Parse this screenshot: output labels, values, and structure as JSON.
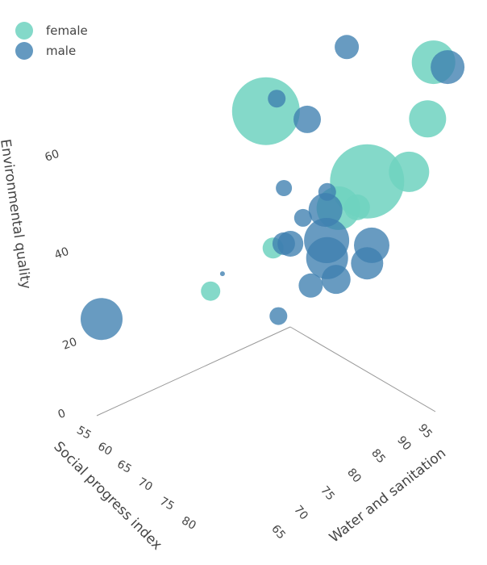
{
  "chart_data": {
    "type": "scatter3d",
    "title": "",
    "axes": {
      "x": {
        "label": "Social progress index",
        "ticks": [
          "55",
          "60",
          "65",
          "70",
          "75",
          "80"
        ],
        "range": [
          53,
          82
        ]
      },
      "y": {
        "label": "Water and sanitation",
        "ticks": [
          "65",
          "70",
          "75",
          "80",
          "85",
          "90",
          "95"
        ],
        "range": [
          63,
          97
        ]
      },
      "z": {
        "label": "Environmental quality",
        "ticks": [
          "0",
          "20",
          "40",
          "60"
        ],
        "range": [
          0,
          85
        ]
      }
    },
    "legend": {
      "placement": "top-left"
    },
    "series": [
      {
        "name": "female",
        "color": "#6fd2c0",
        "points": [
          {
            "x": 66,
            "y": 81.3,
            "z": 70.2,
            "size": 42
          },
          {
            "x": 82,
            "y": 96.7,
            "z": 83.4,
            "size": 27
          },
          {
            "x": 80,
            "y": 97.4,
            "z": 68.1,
            "size": 23
          },
          {
            "x": 78,
            "y": 95.9,
            "z": 55.0,
            "size": 25
          },
          {
            "x": 76,
            "y": 90.3,
            "z": 54.8,
            "size": 46
          },
          {
            "x": 74,
            "y": 87.0,
            "z": 49.1,
            "size": 27
          },
          {
            "x": 75,
            "y": 89.4,
            "z": 48.5,
            "size": 16
          },
          {
            "x": 68,
            "y": 80.8,
            "z": 39.3,
            "size": 13
          },
          {
            "x": 62,
            "y": 75.1,
            "z": 28.4,
            "size": 12
          }
        ]
      },
      {
        "name": "male",
        "color": "#3d7fb0",
        "points": [
          {
            "x": 70,
            "y": 92.0,
            "z": 81.6,
            "size": 15
          },
          {
            "x": 84,
            "y": 97.4,
            "z": 83.2,
            "size": 21
          },
          {
            "x": 66,
            "y": 83.2,
            "z": 72.0,
            "size": 11
          },
          {
            "x": 68,
            "y": 86.8,
            "z": 66.2,
            "size": 17
          },
          {
            "x": 68,
            "y": 82.7,
            "z": 52.4,
            "size": 10
          },
          {
            "x": 72,
            "y": 86.8,
            "z": 51.7,
            "size": 11
          },
          {
            "x": 72,
            "y": 86.5,
            "z": 47.6,
            "size": 21
          },
          {
            "x": 70,
            "y": 84.3,
            "z": 45.7,
            "size": 11
          },
          {
            "x": 72,
            "y": 86.7,
            "z": 40.2,
            "size": 28
          },
          {
            "x": 73,
            "y": 85.9,
            "z": 37.2,
            "size": 26
          },
          {
            "x": 70,
            "y": 82.1,
            "z": 40.9,
            "size": 16
          },
          {
            "x": 69,
            "y": 81.8,
            "z": 40.4,
            "size": 14
          },
          {
            "x": 76,
            "y": 91.1,
            "z": 39.1,
            "size": 22
          },
          {
            "x": 76,
            "y": 90.3,
            "z": 35.3,
            "size": 20
          },
          {
            "x": 74,
            "y": 86.6,
            "z": 32.4,
            "size": 18
          },
          {
            "x": 72,
            "y": 83.9,
            "z": 31.2,
            "size": 15
          },
          {
            "x": 63,
            "y": 76.3,
            "z": 32.5,
            "size": 3
          },
          {
            "x": 66,
            "y": 83.5,
            "z": 20.0,
            "size": 11
          },
          {
            "x": 55,
            "y": 62.1,
            "z": 25.0,
            "size": 26
          }
        ]
      }
    ]
  }
}
